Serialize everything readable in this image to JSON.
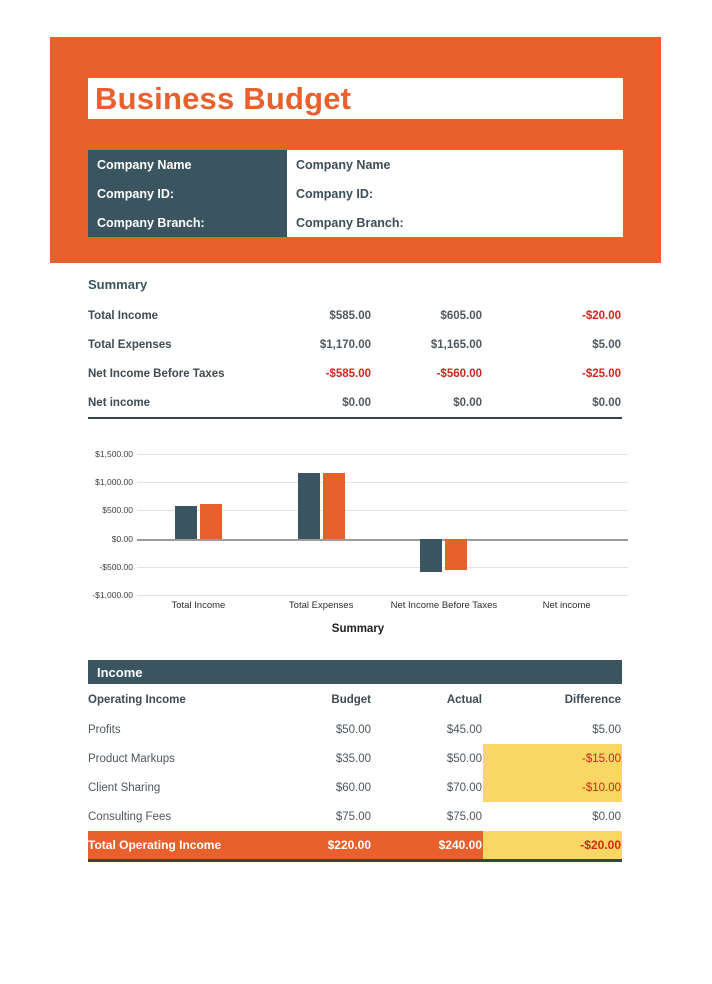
{
  "page": {
    "title": "Business Budget"
  },
  "theme": {
    "orange": "#E8612C",
    "slate": "#3A5560",
    "yellow": "#FAD664",
    "red": "#D1261E"
  },
  "company": {
    "rows": [
      {
        "label": "Company Name",
        "value": "Company Name"
      },
      {
        "label": "Company ID:",
        "value": "Company ID:"
      },
      {
        "label": "Company Branch:",
        "value": "Company Branch:"
      }
    ]
  },
  "summary": {
    "heading": "Summary",
    "rows": [
      {
        "label": "Total Income",
        "values": [
          "$585.00",
          "$605.00",
          "-$20.00"
        ]
      },
      {
        "label": "Total Expenses",
        "values": [
          "$1,170.00",
          "$1,165.00",
          "$5.00"
        ]
      },
      {
        "label": "Net Income Before Taxes",
        "values": [
          "-$585.00",
          "-$560.00",
          "-$25.00"
        ]
      },
      {
        "label": "Net income",
        "values": [
          "$0.00",
          "$0.00",
          "$0.00"
        ]
      }
    ]
  },
  "chart_data": {
    "type": "bar",
    "title": "Summary",
    "title_position": "bottom",
    "categories": [
      "Total Income",
      "Total Expenses",
      "Net Income Before Taxes",
      "Net income"
    ],
    "series": [
      {
        "name": "Budget",
        "color": "#3A5560",
        "values": [
          585,
          1170,
          -585,
          0
        ]
      },
      {
        "name": "Actual",
        "color": "#E8612C",
        "values": [
          605,
          1165,
          -560,
          0
        ]
      }
    ],
    "ylim": [
      -1000,
      1500
    ],
    "grid": true,
    "legend": "none",
    "y_ticks": {
      "labels": [
        "$1,500.00",
        "$1,000.00",
        "$500.00",
        "$0.00",
        "-$500.00",
        "-$1,000.00"
      ],
      "values": [
        1500,
        1000,
        500,
        0,
        -500,
        -1000
      ]
    }
  },
  "income": {
    "section_title": "Income",
    "headers": [
      "Operating Income",
      "Budget",
      "Actual",
      "Difference"
    ],
    "rows": [
      {
        "label": "Profits",
        "budget": "$50.00",
        "actual": "$45.00",
        "difference": "$5.00",
        "highlight": false
      },
      {
        "label": "Product Markups",
        "budget": "$35.00",
        "actual": "$50.00",
        "difference": "-$15.00",
        "highlight": true
      },
      {
        "label": "Client Sharing",
        "budget": "$60.00",
        "actual": "$70.00",
        "difference": "-$10.00",
        "highlight": true
      },
      {
        "label": "Consulting Fees",
        "budget": "$75.00",
        "actual": "$75.00",
        "difference": "$0.00",
        "highlight": false
      }
    ],
    "total": {
      "label": "Total Operating Income",
      "budget": "$220.00",
      "actual": "$240.00",
      "difference": "-$20.00",
      "highlight": true
    }
  }
}
